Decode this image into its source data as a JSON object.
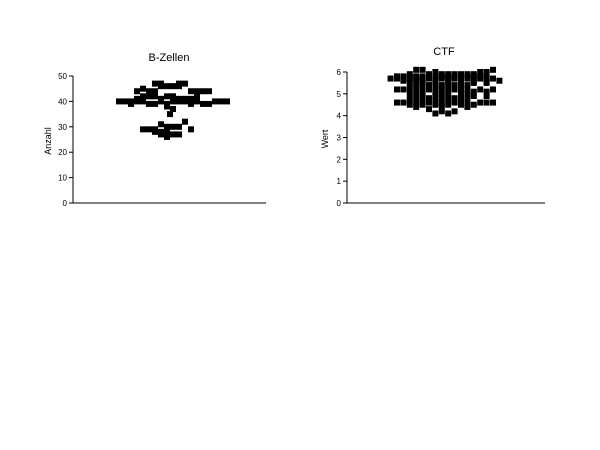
{
  "chart_data": [
    {
      "type": "scatter",
      "title": "B-Zellen",
      "xlabel": "",
      "ylabel": "Anzahl",
      "ylim": [
        0,
        50
      ],
      "yticks": [
        0,
        10,
        20,
        30,
        40,
        50
      ],
      "grid": false,
      "values": [
        47,
        47,
        46,
        46,
        47,
        47,
        44,
        44,
        45,
        46,
        46,
        44,
        44,
        44,
        44,
        44,
        42,
        42,
        41,
        42,
        42,
        41,
        41,
        41,
        42,
        42,
        41,
        40,
        40,
        40,
        39,
        40,
        40,
        39,
        39,
        40,
        39,
        40,
        40,
        40,
        39,
        40,
        39,
        39,
        40,
        40,
        40,
        38,
        37,
        35,
        32,
        31,
        30,
        29,
        29,
        30,
        30,
        29,
        29,
        28,
        28,
        28,
        27,
        27,
        26,
        27
      ],
      "columns": [
        -5,
        -3,
        -1,
        1,
        3,
        5,
        -7,
        -5,
        -9,
        -3,
        3,
        7,
        9,
        11,
        -11,
        13,
        -7,
        -5,
        -3,
        -1,
        1,
        3,
        5,
        7,
        9,
        -9,
        -11,
        -13,
        -15,
        -17,
        -13,
        -11,
        -9,
        -7,
        -5,
        -3,
        -1,
        1,
        3,
        5,
        7,
        9,
        11,
        13,
        15,
        17,
        19,
        -1,
        1,
        0,
        5,
        -3,
        -1,
        -5,
        -9,
        3,
        1,
        7,
        -7,
        -3,
        -1,
        -5,
        -3,
        1,
        -1,
        3
      ]
    },
    {
      "type": "scatter",
      "title": "CTF",
      "xlabel": "",
      "ylabel": "Wert",
      "ylim": [
        0,
        6
      ],
      "yticks": [
        0,
        1,
        2,
        3,
        4,
        5,
        6
      ],
      "grid": false,
      "values": [
        6.1,
        6.1,
        6.0,
        6.0,
        6.0,
        6.1,
        5.9,
        5.9,
        5.9,
        5.9,
        5.9,
        5.9,
        5.9,
        5.9,
        5.8,
        5.8,
        5.8,
        5.8,
        5.8,
        5.8,
        5.8,
        5.8,
        5.8,
        5.8,
        5.8,
        5.8,
        5.8,
        5.8,
        5.8,
        5.7,
        5.7,
        5.7,
        5.7,
        5.7,
        5.7,
        5.7,
        5.7,
        5.7,
        5.7,
        5.7,
        5.7,
        5.7,
        5.7,
        5.7,
        5.7,
        5.7,
        5.6,
        5.6,
        5.6,
        5.6,
        5.6,
        5.6,
        5.6,
        5.6,
        5.6,
        5.5,
        5.5,
        5.5,
        5.5,
        5.5,
        5.5,
        5.5,
        5.4,
        5.4,
        5.4,
        5.4,
        5.4,
        5.3,
        5.3,
        5.3,
        5.3,
        5.3,
        5.2,
        5.2,
        5.2,
        5.2,
        5.2,
        5.2,
        5.2,
        5.2,
        5.2,
        5.1,
        5.1,
        5.1,
        5.1,
        5.1,
        5.1,
        5.1,
        5.0,
        5.0,
        5.0,
        4.9,
        4.9,
        4.9,
        4.9,
        4.9,
        4.9,
        4.9,
        4.8,
        4.8,
        4.8,
        4.8,
        4.8,
        4.7,
        4.7,
        4.7,
        4.7,
        4.7,
        4.6,
        4.6,
        4.6,
        4.6,
        4.6,
        4.6,
        4.6,
        4.6,
        4.6,
        4.6,
        4.5,
        4.5,
        4.5,
        4.5,
        4.5,
        4.5,
        4.4,
        4.4,
        4.4,
        4.3,
        4.2,
        4.2,
        4.1,
        4.1
      ],
      "columns": [
        -9,
        -7,
        -3,
        11,
        13,
        15,
        -5,
        -1,
        1,
        5,
        9,
        -11,
        3,
        7,
        -15,
        -13,
        -11,
        -9,
        -7,
        -5,
        -3,
        -1,
        1,
        3,
        5,
        7,
        9,
        11,
        13,
        -17,
        -15,
        -13,
        -11,
        -9,
        -7,
        -5,
        -3,
        -1,
        1,
        3,
        5,
        7,
        9,
        11,
        13,
        15,
        -13,
        -9,
        -7,
        -3,
        1,
        5,
        9,
        13,
        17,
        -11,
        -7,
        -3,
        1,
        5,
        9,
        13,
        -9,
        -5,
        -1,
        3,
        7,
        -11,
        -7,
        -3,
        1,
        5,
        -9,
        -5,
        -1,
        3,
        7,
        11,
        -13,
        -15,
        15,
        -11,
        -7,
        -3,
        1,
        5,
        9,
        13,
        -9,
        -1,
        7,
        -11,
        -7,
        -3,
        1,
        5,
        9,
        13,
        -9,
        -5,
        -1,
        3,
        7,
        -11,
        -7,
        -3,
        1,
        5,
        -9,
        -5,
        -1,
        3,
        7,
        11,
        -13,
        -15,
        15,
        13,
        -11,
        -7,
        -3,
        1,
        5,
        9,
        -9,
        -1,
        7,
        -5,
        -1,
        3,
        -3,
        1
      ]
    }
  ]
}
